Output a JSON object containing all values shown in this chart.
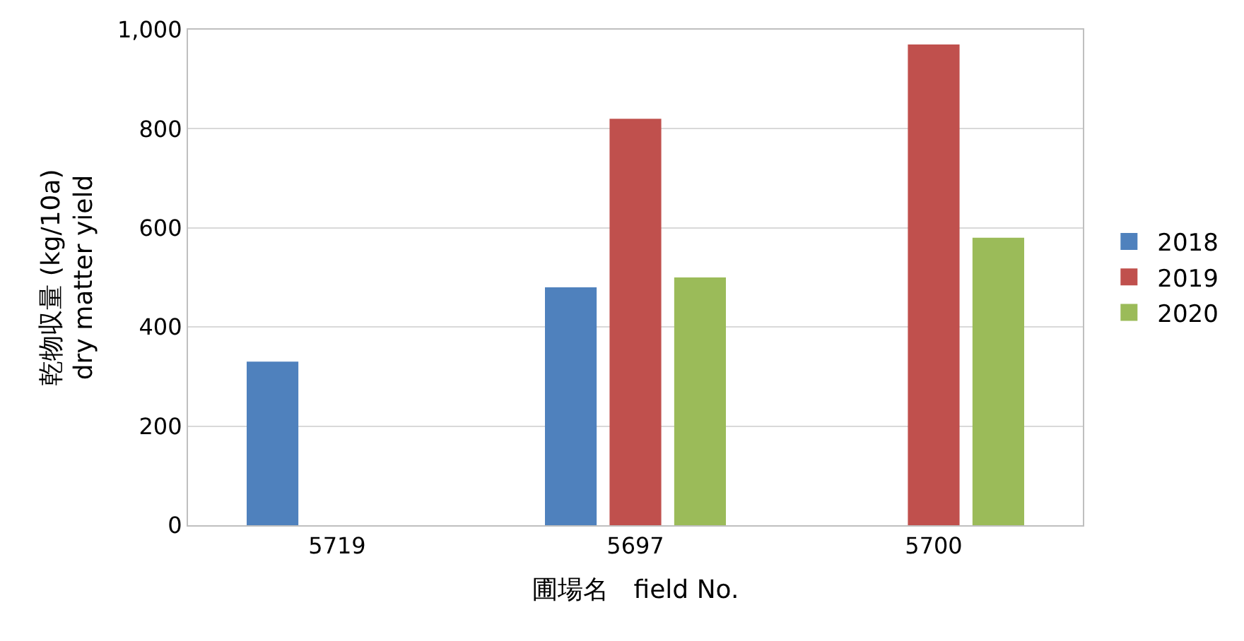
{
  "chart_data": {
    "type": "bar",
    "xlabel": "圃場名　field No.",
    "ylabel": "乾物収量 (kg/10a)\ndry matter yield",
    "categories": [
      "5719",
      "5697",
      "5700"
    ],
    "series": [
      {
        "name": "2018",
        "color": "#4f81bd",
        "values": [
          330,
          480,
          null
        ]
      },
      {
        "name": "2019",
        "color": "#c0504d",
        "values": [
          null,
          820,
          970
        ]
      },
      {
        "name": "2020",
        "color": "#9bbb59",
        "values": [
          null,
          500,
          580
        ]
      }
    ],
    "ylim": [
      0,
      1000
    ],
    "yticks": [
      0,
      200,
      400,
      600,
      800,
      {
        "value": 1000,
        "label": "1,000"
      }
    ],
    "grid": "y",
    "legend": "right"
  }
}
